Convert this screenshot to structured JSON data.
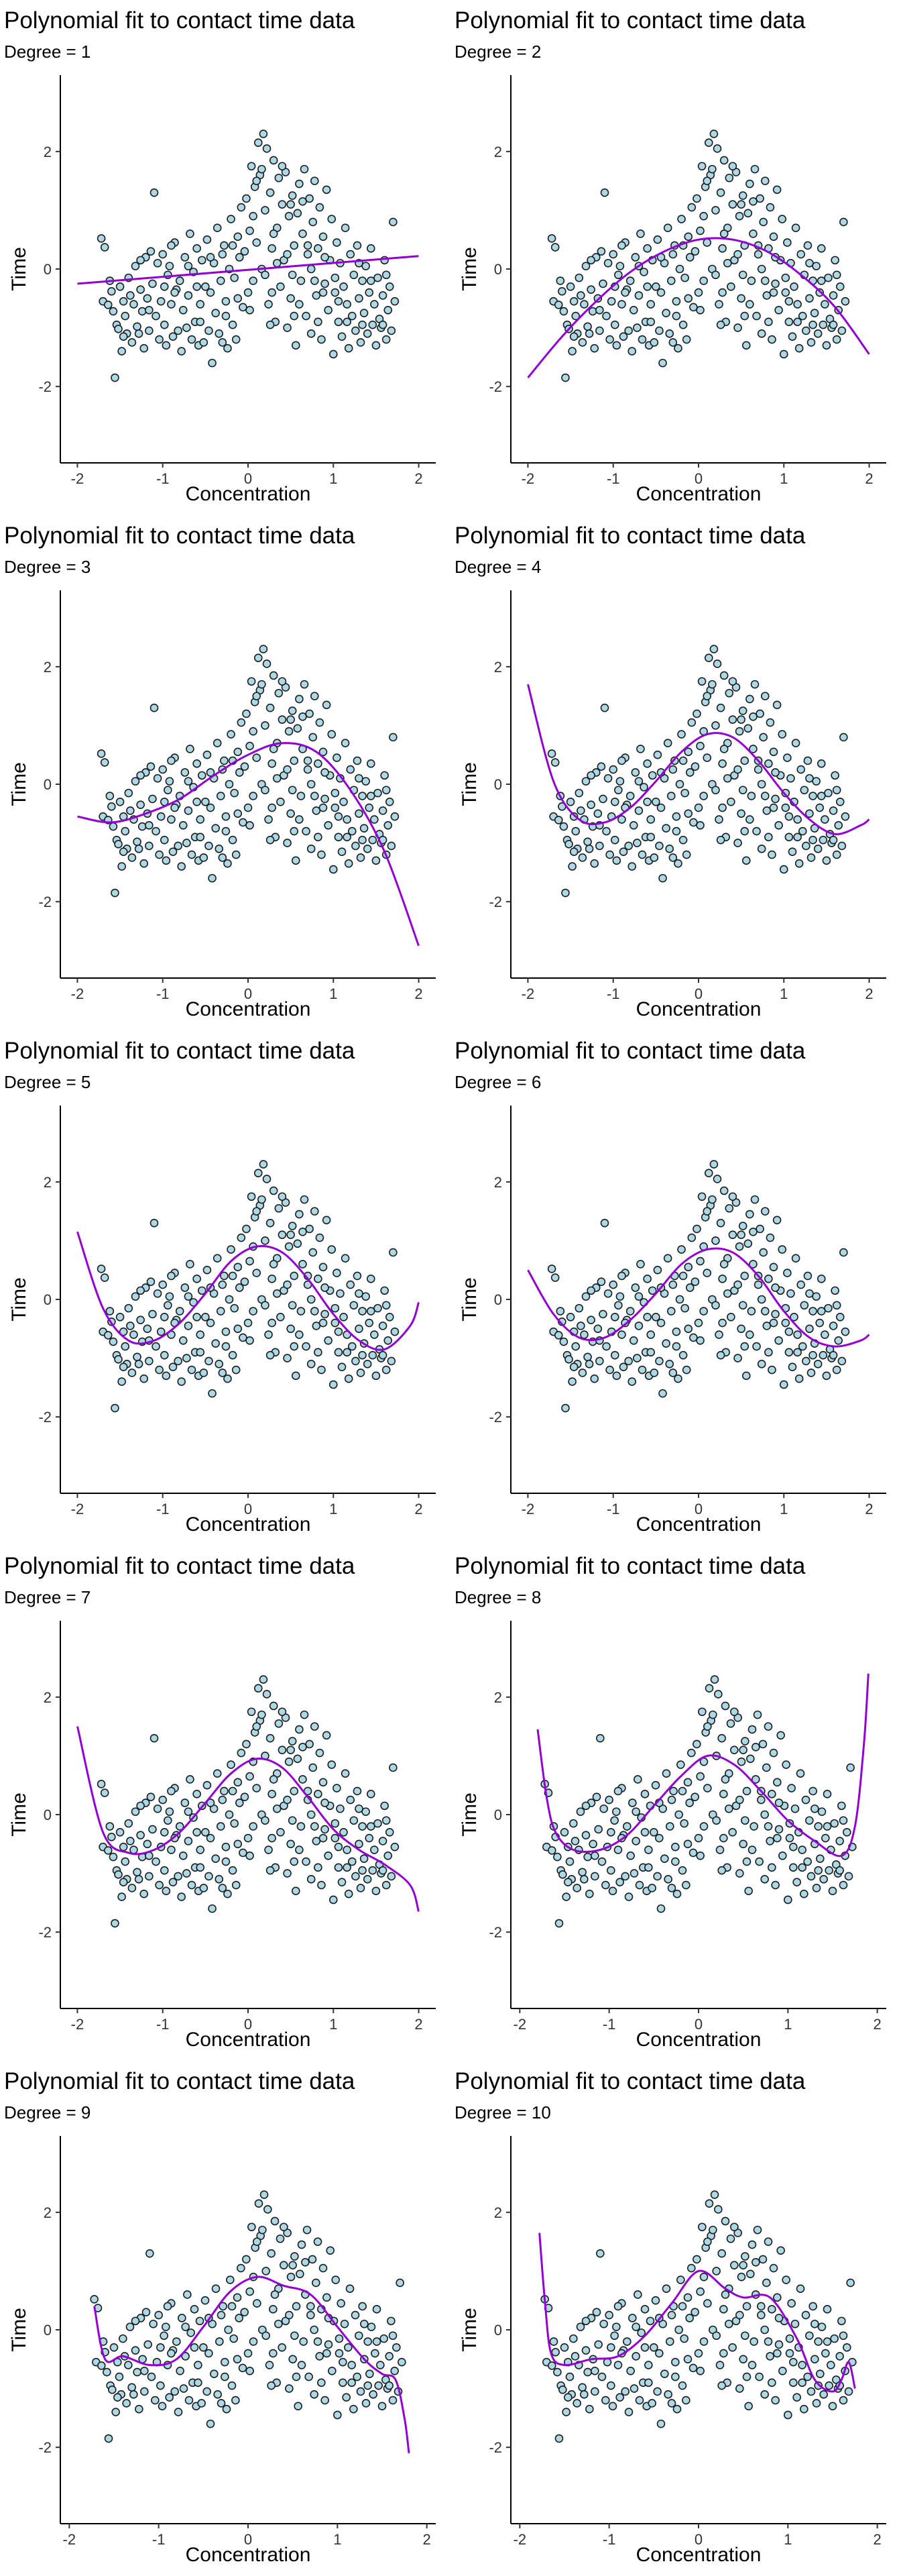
{
  "colors": {
    "point_fill": "#add8e6",
    "point_stroke": "#1c1c1c",
    "curve": "#9400d3",
    "axis": "#000000"
  },
  "points": [
    [
      -1.72,
      0.52
    ],
    [
      -1.68,
      0.37
    ],
    [
      -1.7,
      -0.55
    ],
    [
      -1.64,
      -0.61
    ],
    [
      -1.6,
      -0.38
    ],
    [
      -1.58,
      -0.72
    ],
    [
      -1.56,
      -1.85
    ],
    [
      -1.54,
      -0.95
    ],
    [
      -1.52,
      -1.02
    ],
    [
      -1.5,
      -0.3
    ],
    [
      -1.48,
      -1.4
    ],
    [
      -1.46,
      -0.55
    ],
    [
      -1.44,
      -0.8
    ],
    [
      -1.42,
      -1.1
    ],
    [
      -1.4,
      -0.15
    ],
    [
      -1.38,
      -0.45
    ],
    [
      -1.36,
      -1.25
    ],
    [
      -1.34,
      -0.6
    ],
    [
      -1.32,
      0.05
    ],
    [
      -1.3,
      -0.98
    ],
    [
      -1.28,
      -1.1
    ],
    [
      -1.26,
      -0.35
    ],
    [
      -1.24,
      -0.72
    ],
    [
      -1.22,
      -1.35
    ],
    [
      -1.2,
      0.2
    ],
    [
      -1.18,
      -0.5
    ],
    [
      -1.16,
      -1.05
    ],
    [
      -1.14,
      0.3
    ],
    [
      -1.12,
      -0.25
    ],
    [
      -1.1,
      1.3
    ],
    [
      -1.08,
      -0.8
    ],
    [
      -1.06,
      0.1
    ],
    [
      -1.04,
      -1.2
    ],
    [
      -1.02,
      -0.55
    ],
    [
      -1.0,
      0.25
    ],
    [
      -0.98,
      -0.95
    ],
    [
      -0.96,
      -1.3
    ],
    [
      -0.94,
      -0.1
    ],
    [
      -0.92,
      0.05
    ],
    [
      -0.9,
      -0.6
    ],
    [
      -0.88,
      -1.15
    ],
    [
      -0.86,
      0.45
    ],
    [
      -0.84,
      -0.35
    ],
    [
      -0.82,
      -1.05
    ],
    [
      -0.8,
      -0.2
    ],
    [
      -0.78,
      -1.4
    ],
    [
      -0.76,
      -0.7
    ],
    [
      -0.74,
      0.2
    ],
    [
      -0.72,
      -1.0
    ],
    [
      -0.7,
      -0.45
    ],
    [
      -0.68,
      0.6
    ],
    [
      -0.66,
      -1.2
    ],
    [
      -0.64,
      -0.05
    ],
    [
      -0.62,
      -0.9
    ],
    [
      -0.6,
      0.35
    ],
    [
      -0.58,
      -1.3
    ],
    [
      -0.56,
      -0.6
    ],
    [
      -0.54,
      0.15
    ],
    [
      -0.52,
      -1.25
    ],
    [
      -0.5,
      -0.3
    ],
    [
      -0.48,
      0.5
    ],
    [
      -0.46,
      -1.05
    ],
    [
      -0.44,
      -0.4
    ],
    [
      -0.42,
      -1.6
    ],
    [
      -0.4,
      0.1
    ],
    [
      -0.38,
      -0.75
    ],
    [
      -0.36,
      0.7
    ],
    [
      -0.34,
      -1.1
    ],
    [
      -0.32,
      -0.2
    ],
    [
      -0.3,
      -1.25
    ],
    [
      -0.28,
      0.4
    ],
    [
      -0.26,
      -0.55
    ],
    [
      -0.24,
      -1.35
    ],
    [
      -0.22,
      0.0
    ],
    [
      -0.2,
      0.85
    ],
    [
      -0.18,
      -0.95
    ],
    [
      -0.16,
      -0.15
    ],
    [
      -0.14,
      -1.2
    ],
    [
      -0.12,
      0.55
    ],
    [
      -0.1,
      0.2
    ],
    [
      -0.08,
      1.05
    ],
    [
      -0.06,
      -0.65
    ],
    [
      -0.04,
      0.3
    ],
    [
      -0.02,
      1.2
    ],
    [
      0.0,
      -0.4
    ],
    [
      0.02,
      0.65
    ],
    [
      0.04,
      1.75
    ],
    [
      0.06,
      -0.2
    ],
    [
      0.08,
      1.4
    ],
    [
      0.1,
      0.45
    ],
    [
      0.12,
      2.15
    ],
    [
      0.14,
      1.6
    ],
    [
      0.16,
      0.0
    ],
    [
      0.18,
      2.3
    ],
    [
      0.2,
      1.0
    ],
    [
      0.22,
      2.05
    ],
    [
      0.24,
      -0.6
    ],
    [
      0.26,
      1.3
    ],
    [
      0.28,
      0.35
    ],
    [
      0.3,
      1.85
    ],
    [
      0.32,
      -0.9
    ],
    [
      0.34,
      0.7
    ],
    [
      0.36,
      1.55
    ],
    [
      0.38,
      -0.3
    ],
    [
      0.4,
      1.1
    ],
    [
      0.42,
      0.15
    ],
    [
      0.44,
      1.65
    ],
    [
      0.46,
      -1.0
    ],
    [
      0.48,
      0.9
    ],
    [
      0.5,
      -0.5
    ],
    [
      0.52,
      1.25
    ],
    [
      0.54,
      0.4
    ],
    [
      0.56,
      -1.3
    ],
    [
      0.58,
      0.95
    ],
    [
      0.6,
      1.45
    ],
    [
      0.62,
      -0.2
    ],
    [
      0.64,
      0.6
    ],
    [
      0.66,
      1.7
    ],
    [
      0.68,
      -0.8
    ],
    [
      0.7,
      0.25
    ],
    [
      0.72,
      1.2
    ],
    [
      0.74,
      -1.1
    ],
    [
      0.76,
      0.8
    ],
    [
      0.78,
      1.5
    ],
    [
      0.8,
      -0.45
    ],
    [
      0.82,
      0.35
    ],
    [
      0.84,
      1.05
    ],
    [
      0.86,
      -1.2
    ],
    [
      0.88,
      0.55
    ],
    [
      0.9,
      -0.25
    ],
    [
      0.92,
      1.35
    ],
    [
      0.94,
      -0.7
    ],
    [
      0.96,
      0.15
    ],
    [
      0.98,
      0.85
    ],
    [
      1.0,
      -1.45
    ],
    [
      1.02,
      -0.4
    ],
    [
      1.04,
      0.45
    ],
    [
      1.06,
      -0.9
    ],
    [
      1.08,
      0.1
    ],
    [
      1.1,
      -1.15
    ],
    [
      1.12,
      -0.3
    ],
    [
      1.14,
      0.7
    ],
    [
      1.16,
      -0.6
    ],
    [
      1.18,
      -1.35
    ],
    [
      1.2,
      0.25
    ],
    [
      1.22,
      -0.8
    ],
    [
      1.24,
      -0.1
    ],
    [
      1.26,
      -1.05
    ],
    [
      1.28,
      0.4
    ],
    [
      1.3,
      -0.5
    ],
    [
      1.32,
      -1.25
    ],
    [
      1.34,
      -0.2
    ],
    [
      1.36,
      -0.75
    ],
    [
      1.38,
      0.05
    ],
    [
      1.4,
      -1.1
    ],
    [
      1.42,
      -0.4
    ],
    [
      1.44,
      0.35
    ],
    [
      1.46,
      -0.95
    ],
    [
      1.48,
      -0.6
    ],
    [
      1.5,
      -1.3
    ],
    [
      1.52,
      -0.15
    ],
    [
      1.54,
      -0.85
    ],
    [
      1.56,
      -1.0
    ],
    [
      1.58,
      -0.45
    ],
    [
      1.6,
      0.15
    ],
    [
      1.62,
      -1.2
    ],
    [
      1.64,
      -0.7
    ],
    [
      1.66,
      -0.3
    ],
    [
      1.68,
      -1.05
    ],
    [
      1.7,
      0.8
    ],
    [
      1.72,
      -0.55
    ],
    [
      -1.62,
      -0.2
    ],
    [
      -1.26,
      0.15
    ],
    [
      -0.98,
      -0.3
    ],
    [
      -0.7,
      0.05
    ],
    [
      -0.44,
      0.2
    ],
    [
      -0.18,
      0.4
    ],
    [
      0.06,
      0.9
    ],
    [
      0.2,
      -0.1
    ],
    [
      0.34,
      0.1
    ],
    [
      0.46,
      0.25
    ],
    [
      0.6,
      -0.6
    ],
    [
      0.74,
      0.0
    ],
    [
      0.88,
      -0.4
    ],
    [
      1.02,
      -0.15
    ],
    [
      1.16,
      -0.9
    ],
    [
      1.3,
      0.1
    ],
    [
      1.44,
      -0.2
    ],
    [
      1.58,
      -0.95
    ],
    [
      -1.46,
      -1.15
    ],
    [
      -1.16,
      -0.7
    ],
    [
      -0.86,
      -0.4
    ],
    [
      -0.56,
      -0.9
    ],
    [
      -0.26,
      -0.8
    ],
    [
      0.02,
      -0.7
    ],
    [
      0.28,
      -0.4
    ],
    [
      0.52,
      -0.1
    ],
    [
      0.78,
      -0.2
    ],
    [
      1.06,
      -0.55
    ],
    [
      1.34,
      -0.95
    ],
    [
      1.62,
      -0.1
    ],
    [
      -0.3,
      0.25
    ],
    [
      0.1,
      1.5
    ],
    [
      0.3,
      0.6
    ],
    [
      0.5,
      1.1
    ],
    [
      0.7,
      0.4
    ],
    [
      0.9,
      0.2
    ],
    [
      -0.9,
      0.4
    ],
    [
      -0.6,
      -0.3
    ],
    [
      0.16,
      1.7
    ],
    [
      0.4,
      1.75
    ],
    [
      0.64,
      1.15
    ],
    [
      -0.12,
      -0.5
    ],
    [
      0.26,
      -0.95
    ],
    [
      0.54,
      -0.8
    ],
    [
      0.82,
      -0.9
    ]
  ],
  "panels": [
    {
      "title": "Polynomial fit to contact time data",
      "subtitle": "Degree = 1",
      "xlabel": "Concentration",
      "ylabel": "Time",
      "xlim": [
        -2.2,
        2.2
      ],
      "ylim": [
        -3.3,
        3.3
      ],
      "xticks": [
        "-2",
        "-1",
        "0",
        "1",
        "2"
      ],
      "yticks": [
        "-2",
        "0",
        "2"
      ],
      "curve": {
        "x": [
          -2.0,
          2.0
        ],
        "y": [
          -0.25,
          0.22
        ]
      }
    },
    {
      "title": "Polynomial fit to contact time data",
      "subtitle": "Degree = 2",
      "xlabel": "Concentration",
      "ylabel": "Time",
      "xlim": [
        -2.2,
        2.2
      ],
      "ylim": [
        -3.3,
        3.3
      ],
      "xticks": [
        "-2",
        "-1",
        "0",
        "1",
        "2"
      ],
      "yticks": [
        "-2",
        "0",
        "2"
      ],
      "curve": {
        "x": [
          -2.0,
          -1.6,
          -1.2,
          -0.8,
          -0.4,
          0.0,
          0.4,
          0.8,
          1.2,
          1.6,
          2.0
        ],
        "y": [
          -1.85,
          -1.15,
          -0.55,
          -0.05,
          0.3,
          0.5,
          0.5,
          0.3,
          -0.1,
          -0.65,
          -1.45
        ]
      }
    },
    {
      "title": "Polynomial fit to contact time data",
      "subtitle": "Degree = 3",
      "xlabel": "Concentration",
      "ylabel": "Time",
      "xlim": [
        -2.2,
        2.2
      ],
      "ylim": [
        -3.3,
        3.3
      ],
      "xticks": [
        "-2",
        "-1",
        "0",
        "1",
        "2"
      ],
      "yticks": [
        "-2",
        "0",
        "2"
      ],
      "curve": {
        "x": [
          -2.0,
          -1.6,
          -1.2,
          -0.8,
          -0.4,
          0.0,
          0.4,
          0.8,
          1.2,
          1.6,
          2.0
        ],
        "y": [
          -0.55,
          -0.65,
          -0.5,
          -0.25,
          0.15,
          0.5,
          0.7,
          0.55,
          -0.1,
          -1.15,
          -2.75
        ]
      }
    },
    {
      "title": "Polynomial fit to contact time data",
      "subtitle": "Degree = 4",
      "xlabel": "Concentration",
      "ylabel": "Time",
      "xlim": [
        -2.2,
        2.2
      ],
      "ylim": [
        -3.3,
        3.3
      ],
      "xticks": [
        "-2",
        "-1",
        "0",
        "1",
        "2"
      ],
      "yticks": [
        "-2",
        "0",
        "2"
      ],
      "curve": {
        "x": [
          -2.0,
          -1.7,
          -1.4,
          -1.1,
          -0.8,
          -0.5,
          -0.2,
          0.1,
          0.4,
          0.7,
          1.0,
          1.3,
          1.6,
          1.9,
          2.0
        ],
        "y": [
          1.7,
          0.05,
          -0.6,
          -0.65,
          -0.4,
          0.05,
          0.55,
          0.85,
          0.8,
          0.4,
          -0.15,
          -0.6,
          -0.85,
          -0.7,
          -0.6
        ]
      }
    },
    {
      "title": "Polynomial fit to contact time data",
      "subtitle": "Degree = 5",
      "xlabel": "Concentration",
      "ylabel": "Time",
      "xlim": [
        -2.2,
        2.2
      ],
      "ylim": [
        -3.3,
        3.3
      ],
      "xticks": [
        "-2",
        "-1",
        "0",
        "1",
        "2"
      ],
      "yticks": [
        "-2",
        "0",
        "2"
      ],
      "curve": {
        "x": [
          -2.0,
          -1.7,
          -1.4,
          -1.1,
          -0.8,
          -0.5,
          -0.2,
          0.1,
          0.4,
          0.7,
          1.0,
          1.3,
          1.6,
          1.9,
          2.0
        ],
        "y": [
          1.15,
          -0.15,
          -0.7,
          -0.7,
          -0.4,
          0.1,
          0.65,
          0.9,
          0.8,
          0.35,
          -0.25,
          -0.7,
          -0.85,
          -0.45,
          -0.05
        ]
      }
    },
    {
      "title": "Polynomial fit to contact time data",
      "subtitle": "Degree = 6",
      "xlabel": "Concentration",
      "ylabel": "Time",
      "xlim": [
        -2.2,
        2.2
      ],
      "ylim": [
        -3.3,
        3.3
      ],
      "xticks": [
        "-2",
        "-1",
        "0",
        "1",
        "2"
      ],
      "yticks": [
        "-2",
        "0",
        "2"
      ],
      "curve": {
        "x": [
          -2.0,
          -1.7,
          -1.4,
          -1.1,
          -0.8,
          -0.5,
          -0.2,
          0.1,
          0.4,
          0.7,
          1.0,
          1.3,
          1.6,
          1.9,
          2.0
        ],
        "y": [
          0.5,
          -0.25,
          -0.65,
          -0.65,
          -0.35,
          0.1,
          0.6,
          0.85,
          0.8,
          0.4,
          -0.2,
          -0.65,
          -0.8,
          -0.7,
          -0.6
        ]
      }
    },
    {
      "title": "Polynomial fit to contact time data",
      "subtitle": "Degree = 7",
      "xlabel": "Concentration",
      "ylabel": "Time",
      "xlim": [
        -2.2,
        2.2
      ],
      "ylim": [
        -3.3,
        3.3
      ],
      "xticks": [
        "-2",
        "-1",
        "0",
        "1",
        "2"
      ],
      "yticks": [
        "-2",
        "0",
        "2"
      ],
      "curve": {
        "x": [
          -2.0,
          -1.7,
          -1.4,
          -1.1,
          -0.8,
          -0.5,
          -0.2,
          0.1,
          0.4,
          0.7,
          1.0,
          1.3,
          1.6,
          1.9,
          2.0
        ],
        "y": [
          1.5,
          -0.3,
          -0.65,
          -0.6,
          -0.3,
          0.2,
          0.7,
          0.95,
          0.8,
          0.3,
          -0.25,
          -0.6,
          -0.85,
          -1.2,
          -1.65
        ]
      }
    },
    {
      "title": "Polynomial fit to contact time data",
      "subtitle": "Degree = 8",
      "xlabel": "Concentration",
      "ylabel": "Time",
      "xlim": [
        -2.1,
        2.1
      ],
      "ylim": [
        -3.3,
        3.3
      ],
      "xticks": [
        "-2",
        "-1",
        "0",
        "1",
        "2"
      ],
      "yticks": [
        "-2",
        "0",
        "2"
      ],
      "curve": {
        "x": [
          -1.8,
          -1.7,
          -1.6,
          -1.4,
          -1.1,
          -0.8,
          -0.5,
          -0.2,
          0.1,
          0.4,
          0.7,
          1.0,
          1.3,
          1.6,
          1.75,
          1.85,
          1.9
        ],
        "y": [
          1.45,
          0.3,
          -0.3,
          -0.6,
          -0.6,
          -0.35,
          0.15,
          0.65,
          1.0,
          0.85,
          0.4,
          -0.1,
          -0.45,
          -0.7,
          -0.2,
          1.2,
          2.4
        ]
      }
    },
    {
      "title": "Polynomial fit to contact time data",
      "subtitle": "Degree = 9",
      "xlabel": "Concentration",
      "ylabel": "Time",
      "xlim": [
        -2.1,
        2.1
      ],
      "ylim": [
        -3.3,
        3.3
      ],
      "xticks": [
        "-2",
        "-1",
        "0",
        "1",
        "2"
      ],
      "yticks": [
        "-2",
        "0",
        "2"
      ],
      "curve": {
        "x": [
          -1.72,
          -1.6,
          -1.4,
          -1.1,
          -0.8,
          -0.5,
          -0.2,
          0.1,
          0.4,
          0.7,
          1.0,
          1.3,
          1.5,
          1.65,
          1.75,
          1.8
        ],
        "y": [
          0.4,
          -0.5,
          -0.45,
          -0.6,
          -0.5,
          0.05,
          0.65,
          0.9,
          0.75,
          0.6,
          0.05,
          -0.5,
          -0.75,
          -0.85,
          -1.5,
          -2.1
        ]
      }
    },
    {
      "title": "Polynomial fit to contact time data",
      "subtitle": "Degree = 10",
      "xlabel": "Concentration",
      "ylabel": "Time",
      "xlim": [
        -2.1,
        2.1
      ],
      "ylim": [
        -3.3,
        3.3
      ],
      "xticks": [
        "-2",
        "-1",
        "0",
        "1",
        "2"
      ],
      "yticks": [
        "-2",
        "0",
        "2"
      ],
      "curve": {
        "x": [
          -1.78,
          -1.72,
          -1.65,
          -1.5,
          -1.2,
          -0.9,
          -0.6,
          -0.3,
          0.0,
          0.3,
          0.5,
          0.8,
          1.1,
          1.3,
          1.5,
          1.6,
          1.68,
          1.75
        ],
        "y": [
          1.65,
          0.5,
          -0.4,
          -0.6,
          -0.5,
          -0.45,
          -0.1,
          0.45,
          1.0,
          0.7,
          0.55,
          0.55,
          -0.15,
          -0.85,
          -1.05,
          -0.85,
          -0.55,
          -1.0
        ]
      }
    }
  ]
}
